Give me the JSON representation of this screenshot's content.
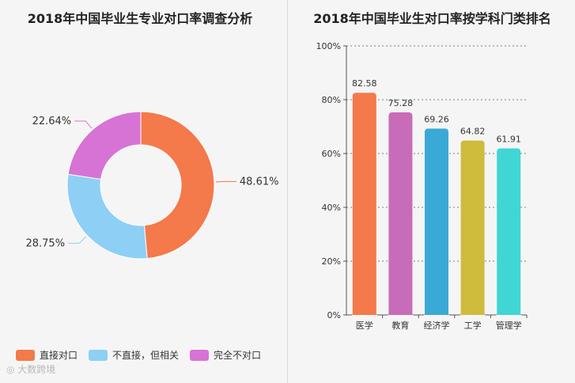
{
  "chart_data": [
    {
      "type": "pie",
      "title": "2018年中国毕业生专业对口率调查分析",
      "labels": [
        "直接对口",
        "不直接，但相关",
        "完全不对口"
      ],
      "values": [
        48.61,
        28.75,
        22.64
      ],
      "value_labels": [
        "48.61%",
        "28.75%",
        "22.64%"
      ],
      "colors": [
        "#f4794b",
        "#8ecff5",
        "#d773d4"
      ],
      "legend": "bottom"
    },
    {
      "type": "bar",
      "title": "2018年中国毕业生对口率按学科门类排名",
      "categories": [
        "医学",
        "教育",
        "经济学",
        "工学",
        "管理学"
      ],
      "values": [
        82.58,
        75.28,
        69.26,
        64.82,
        61.91
      ],
      "value_labels": [
        "82.58",
        "75.28",
        "69.26",
        "64.82",
        "61.91"
      ],
      "colors": [
        "#f4794b",
        "#c86cba",
        "#3aa9d6",
        "#cfbb3c",
        "#3fd6d5"
      ],
      "ylim": [
        0,
        100
      ],
      "yticks": [
        "0%",
        "20%",
        "40%",
        "60%",
        "80%",
        "100%"
      ],
      "grid": true
    }
  ],
  "watermark": "大数跨境"
}
